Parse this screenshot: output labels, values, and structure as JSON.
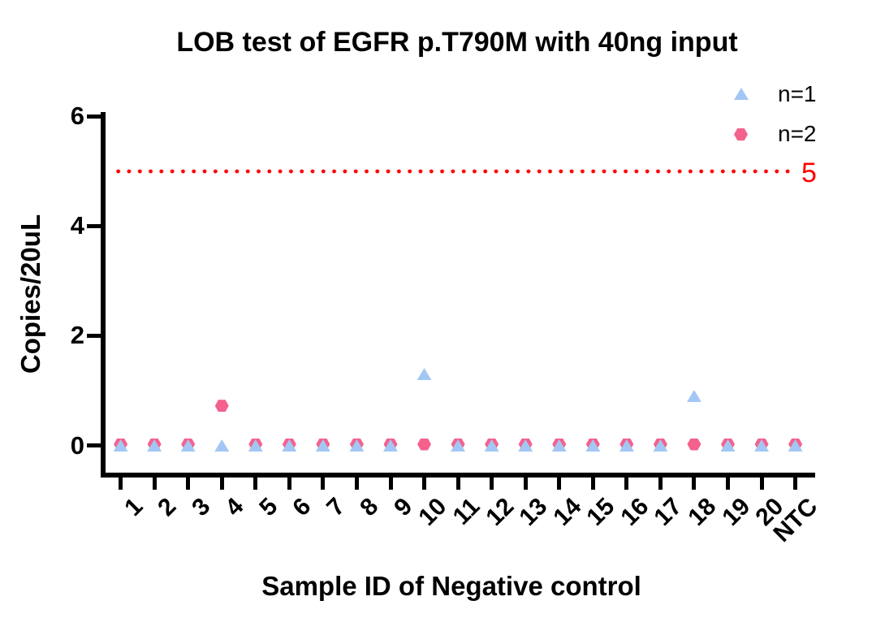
{
  "title": "LOB test of EGFR p.T790M with 40ng input",
  "chart_data": {
    "type": "scatter",
    "title": "LOB test of EGFR p.T790M with 40ng input",
    "xlabel": "Sample ID of Negative control",
    "ylabel": "Copies/20uL",
    "categories": [
      "1",
      "2",
      "3",
      "4",
      "5",
      "6",
      "7",
      "8",
      "9",
      "10",
      "11",
      "12",
      "13",
      "14",
      "15",
      "16",
      "17",
      "18",
      "19",
      "20",
      "NTC"
    ],
    "yticks": [
      0,
      2,
      4,
      6
    ],
    "ylim": [
      0,
      6
    ],
    "grid": false,
    "legend_position": "top-right",
    "series": [
      {
        "name": "n=1",
        "marker": "triangle",
        "color": "#A3C7F4",
        "values": [
          0,
          0,
          0,
          0,
          0,
          0,
          0,
          0,
          0,
          1.3,
          0,
          0,
          0,
          0,
          0,
          0,
          0,
          0.9,
          0,
          0,
          0
        ]
      },
      {
        "name": "n=2",
        "marker": "hexagon",
        "color": "#F4618D",
        "values": [
          0,
          0,
          0,
          0.7,
          0,
          0,
          0,
          0,
          0,
          0,
          0,
          0,
          0,
          0,
          0,
          0,
          0,
          0,
          0,
          0,
          0
        ]
      }
    ],
    "threshold": {
      "value": 5,
      "label": "5",
      "color": "#FF0000",
      "style": "dotted"
    }
  },
  "colors": {
    "background": "#FFFFFF",
    "axis": "#000000",
    "n1_blue": "#A3C7F4",
    "n2_pink": "#F4618D",
    "threshold_red": "#FF0000"
  }
}
